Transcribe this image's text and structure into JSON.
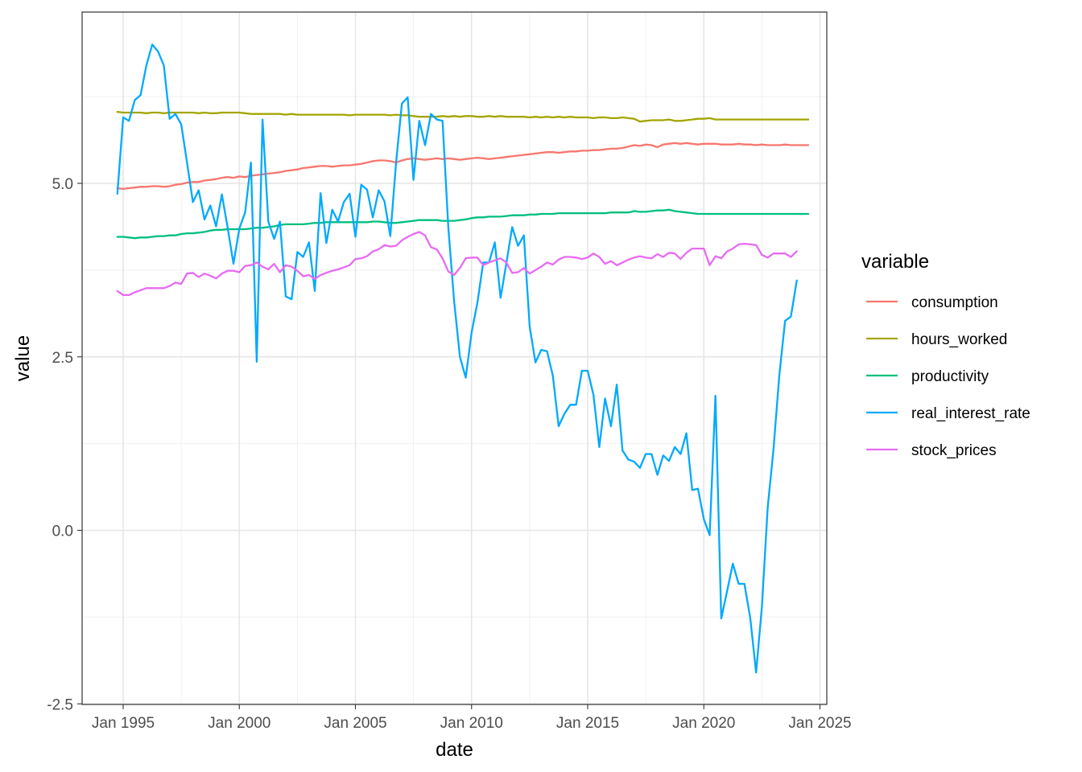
{
  "chart_data": {
    "type": "line",
    "xlabel": "date",
    "ylabel": "value",
    "x_ticks": [
      "Jan 1995",
      "Jan 2000",
      "Jan 2005",
      "Jan 2010",
      "Jan 2015",
      "Jan 2020",
      "Jan 2025"
    ],
    "y_ticks": [
      "-2.5",
      "0.0",
      "2.5",
      "5.0"
    ],
    "xlim": [
      "1994-10-01",
      "2024-12-31"
    ],
    "ylim": [
      -2.5,
      7.5
    ],
    "grid": true,
    "legend": {
      "title": "variable",
      "position": "right"
    },
    "x_frequency": "quarterly",
    "x_start": "1994-10-01",
    "series": [
      {
        "name": "consumption",
        "color": "#F8766D",
        "values": [
          4.93,
          4.92,
          4.93,
          4.94,
          4.95,
          4.95,
          4.96,
          4.96,
          4.95,
          4.96,
          4.98,
          4.99,
          5.01,
          5.02,
          5.02,
          5.04,
          5.05,
          5.06,
          5.08,
          5.09,
          5.08,
          5.1,
          5.09,
          5.11,
          5.12,
          5.13,
          5.14,
          5.15,
          5.16,
          5.18,
          5.19,
          5.2,
          5.22,
          5.23,
          5.24,
          5.25,
          5.25,
          5.24,
          5.25,
          5.26,
          5.26,
          5.27,
          5.28,
          5.3,
          5.32,
          5.33,
          5.33,
          5.32,
          5.3,
          5.33,
          5.35,
          5.36,
          5.35,
          5.34,
          5.35,
          5.36,
          5.35,
          5.36,
          5.35,
          5.34,
          5.35,
          5.36,
          5.37,
          5.36,
          5.35,
          5.36,
          5.37,
          5.38,
          5.39,
          5.4,
          5.41,
          5.42,
          5.43,
          5.44,
          5.45,
          5.45,
          5.44,
          5.45,
          5.46,
          5.46,
          5.47,
          5.47,
          5.48,
          5.48,
          5.49,
          5.5,
          5.5,
          5.51,
          5.53,
          5.55,
          5.54,
          5.56,
          5.55,
          5.52,
          5.56,
          5.57,
          5.58,
          5.57,
          5.58,
          5.57,
          5.56,
          5.57,
          5.57,
          5.57,
          5.56,
          5.56,
          5.56,
          5.57,
          5.56,
          5.56,
          5.55,
          5.56,
          5.55,
          5.55,
          5.55,
          5.56,
          5.55,
          5.55,
          5.55,
          5.55
        ]
      },
      {
        "name": "hours_worked",
        "color": "#A3A500",
        "values": [
          6.03,
          6.02,
          6.02,
          6.02,
          6.02,
          6.01,
          6.02,
          6.02,
          6.01,
          6.02,
          6.02,
          6.02,
          6.02,
          6.02,
          6.01,
          6.02,
          6.01,
          6.01,
          6.02,
          6.02,
          6.02,
          6.02,
          6.01,
          6.0,
          6.0,
          6.0,
          6.0,
          6.0,
          6.0,
          5.99,
          6.0,
          5.99,
          5.99,
          5.99,
          5.99,
          5.99,
          5.99,
          5.99,
          5.99,
          5.99,
          5.98,
          5.99,
          5.99,
          5.99,
          5.99,
          5.99,
          5.99,
          5.98,
          5.99,
          5.98,
          5.98,
          5.97,
          5.96,
          5.96,
          5.96,
          5.96,
          5.97,
          5.96,
          5.97,
          5.96,
          5.97,
          5.97,
          5.96,
          5.96,
          5.97,
          5.96,
          5.97,
          5.96,
          5.96,
          5.96,
          5.96,
          5.95,
          5.96,
          5.95,
          5.96,
          5.95,
          5.96,
          5.95,
          5.96,
          5.95,
          5.95,
          5.95,
          5.94,
          5.95,
          5.95,
          5.94,
          5.94,
          5.95,
          5.94,
          5.93,
          5.89,
          5.9,
          5.91,
          5.91,
          5.91,
          5.92,
          5.9,
          5.9,
          5.91,
          5.92,
          5.93,
          5.93,
          5.94,
          5.92,
          5.92,
          5.92,
          5.92,
          5.92,
          5.92,
          5.92,
          5.92,
          5.92,
          5.92,
          5.92,
          5.92,
          5.92,
          5.92,
          5.92,
          5.92,
          5.92
        ]
      },
      {
        "name": "productivity",
        "color": "#00BF7D",
        "values": [
          4.23,
          4.23,
          4.22,
          4.21,
          4.22,
          4.22,
          4.23,
          4.24,
          4.24,
          4.25,
          4.25,
          4.27,
          4.28,
          4.28,
          4.29,
          4.3,
          4.32,
          4.33,
          4.33,
          4.34,
          4.34,
          4.34,
          4.34,
          4.35,
          4.36,
          4.36,
          4.37,
          4.38,
          4.4,
          4.41,
          4.41,
          4.41,
          4.41,
          4.42,
          4.43,
          4.43,
          4.44,
          4.44,
          4.44,
          4.44,
          4.44,
          4.44,
          4.44,
          4.44,
          4.45,
          4.45,
          4.44,
          4.43,
          4.43,
          4.44,
          4.45,
          4.46,
          4.47,
          4.47,
          4.47,
          4.47,
          4.46,
          4.46,
          4.46,
          4.47,
          4.48,
          4.5,
          4.51,
          4.51,
          4.52,
          4.52,
          4.52,
          4.53,
          4.54,
          4.54,
          4.54,
          4.55,
          4.55,
          4.56,
          4.56,
          4.56,
          4.57,
          4.57,
          4.57,
          4.57,
          4.57,
          4.57,
          4.57,
          4.57,
          4.57,
          4.58,
          4.58,
          4.58,
          4.58,
          4.6,
          4.59,
          4.59,
          4.6,
          4.61,
          4.61,
          4.62,
          4.6,
          4.59,
          4.58,
          4.57,
          4.56,
          4.56,
          4.56,
          4.56,
          4.56,
          4.56,
          4.56,
          4.56,
          4.56,
          4.56,
          4.56,
          4.56,
          4.56,
          4.56,
          4.56,
          4.56,
          4.56,
          4.56,
          4.56,
          4.56
        ]
      },
      {
        "name": "real_interest_rate",
        "color": "#00A9FF",
        "values": [
          4.85,
          5.95,
          5.9,
          6.2,
          6.27,
          6.7,
          7.0,
          6.9,
          6.7,
          5.93,
          6.0,
          5.85,
          5.3,
          4.73,
          4.9,
          4.48,
          4.68,
          4.38,
          4.84,
          4.36,
          3.84,
          4.35,
          4.58,
          5.3,
          2.43,
          5.92,
          4.45,
          4.2,
          4.45,
          3.37,
          3.33,
          4.01,
          3.94,
          4.15,
          3.45,
          4.86,
          4.14,
          4.62,
          4.45,
          4.73,
          4.85,
          4.23,
          4.98,
          4.91,
          4.51,
          4.9,
          4.74,
          4.24,
          5.3,
          6.15,
          6.24,
          5.05,
          5.9,
          5.55,
          6.0,
          5.92,
          5.9,
          4.36,
          3.3,
          2.5,
          2.2,
          2.85,
          3.28,
          3.86,
          3.86,
          4.15,
          3.35,
          3.85,
          4.37,
          4.1,
          4.25,
          2.94,
          2.42,
          2.6,
          2.58,
          2.23,
          1.5,
          1.68,
          1.81,
          1.81,
          2.3,
          2.3,
          1.95,
          1.2,
          1.9,
          1.5,
          2.1,
          1.15,
          1.02,
          0.99,
          0.9,
          1.1,
          1.1,
          0.8,
          1.08,
          1.0,
          1.2,
          1.1,
          1.4,
          0.58,
          0.6,
          0.16,
          -0.07,
          1.94,
          -1.27,
          -0.88,
          -0.48,
          -0.77,
          -0.77,
          -1.27,
          -2.05,
          -1.1,
          0.33,
          1.17,
          2.23,
          3.02,
          3.08,
          3.6
        ]
      },
      {
        "name": "stock_prices",
        "color": "#E76BF3",
        "values": [
          3.45,
          3.39,
          3.39,
          3.43,
          3.46,
          3.49,
          3.49,
          3.49,
          3.49,
          3.52,
          3.57,
          3.55,
          3.7,
          3.71,
          3.65,
          3.7,
          3.67,
          3.63,
          3.7,
          3.74,
          3.74,
          3.72,
          3.81,
          3.82,
          3.86,
          3.8,
          3.76,
          3.84,
          3.72,
          3.82,
          3.8,
          3.74,
          3.66,
          3.68,
          3.62,
          3.68,
          3.71,
          3.74,
          3.76,
          3.79,
          3.82,
          3.91,
          3.92,
          3.95,
          4.02,
          4.05,
          4.11,
          4.09,
          4.1,
          4.18,
          4.23,
          4.27,
          4.3,
          4.25,
          4.08,
          4.05,
          3.92,
          3.73,
          3.68,
          3.78,
          3.92,
          3.93,
          3.93,
          3.82,
          3.86,
          3.89,
          3.92,
          3.86,
          3.71,
          3.72,
          3.78,
          3.7,
          3.75,
          3.8,
          3.86,
          3.83,
          3.9,
          3.94,
          3.94,
          3.93,
          3.91,
          3.93,
          3.99,
          3.94,
          3.84,
          3.88,
          3.82,
          3.86,
          3.9,
          3.93,
          3.95,
          3.93,
          3.92,
          3.98,
          3.94,
          4.0,
          3.99,
          3.91,
          4.0,
          4.06,
          4.06,
          4.06,
          3.82,
          3.95,
          3.92,
          4.02,
          4.06,
          4.12,
          4.13,
          4.12,
          4.11,
          3.97,
          3.93,
          3.99,
          3.99,
          3.99,
          3.94,
          4.02
        ]
      }
    ]
  }
}
